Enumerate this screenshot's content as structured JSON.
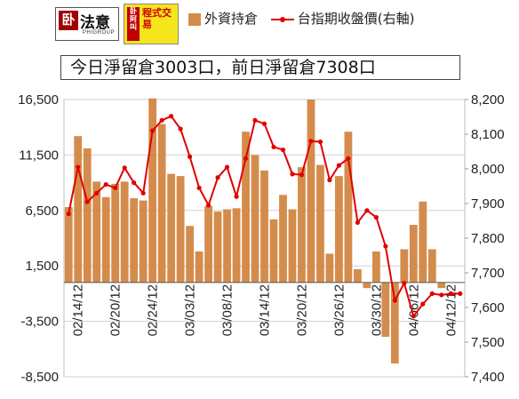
{
  "logo": {
    "mark": "卧",
    "name": "法意",
    "sub": "PHIGROUP",
    "program_mark": "卧阿叫",
    "program_text": "程式交易"
  },
  "legend": {
    "bar_label": "外資持倉",
    "line_label": "台指期收盤價(右軸)"
  },
  "note": "今日淨留倉3003口，前日淨留倉7308口",
  "colors": {
    "bar": "#D48C4C",
    "line": "#E00000",
    "grid": "#D0D0D0",
    "axis_text": "#222222"
  },
  "chart_data": {
    "type": "bar",
    "categories": [
      "02/13",
      "02/14",
      "02/15",
      "02/16",
      "02/17",
      "02/20",
      "02/21",
      "02/22",
      "02/23",
      "02/24",
      "02/27",
      "03/01",
      "03/02",
      "03/03",
      "03/05",
      "03/06",
      "03/07",
      "03/08",
      "03/09",
      "03/12",
      "03/13",
      "03/14",
      "03/15",
      "03/16",
      "03/19",
      "03/20",
      "03/21",
      "03/22",
      "03/23",
      "03/26",
      "03/27",
      "03/28",
      "03/29",
      "03/30",
      "04/02",
      "04/03",
      "04/05",
      "04/06",
      "04/09",
      "04/10",
      "04/11",
      "04/12",
      "04/13"
    ],
    "tick_labels": [
      "02/14/12",
      "02/20/12",
      "02/24/12",
      "03/03/12",
      "03/08/12",
      "03/14/12",
      "03/20/12",
      "03/26/12",
      "03/30/12",
      "04/06/12",
      "04/12/12"
    ],
    "tick_categories": [
      "02/14",
      "02/20",
      "02/24",
      "03/03",
      "03/08",
      "03/14",
      "03/20",
      "03/26",
      "03/30",
      "04/06",
      "04/12"
    ],
    "series": [
      {
        "name": "外資持倉",
        "type": "bar",
        "axis": "left",
        "values": [
          6800,
          13200,
          12100,
          9100,
          7700,
          8900,
          9100,
          7600,
          7400,
          16600,
          14300,
          9800,
          9600,
          5100,
          2800,
          6900,
          6400,
          6600,
          6700,
          13600,
          11500,
          10100,
          5700,
          7900,
          6600,
          10400,
          16500,
          10600,
          2600,
          9600,
          13600,
          1200,
          -500,
          2800,
          -4900,
          -7300,
          3000,
          5200,
          7300,
          3000,
          -500,
          0,
          0
        ]
      },
      {
        "name": "台指期收盤價(右軸)",
        "type": "line",
        "axis": "right",
        "values": [
          7870,
          8005,
          7905,
          7930,
          7955,
          7945,
          8003,
          7960,
          7930,
          8110,
          8140,
          8152,
          8115,
          8035,
          7945,
          7895,
          7975,
          8005,
          7920,
          8030,
          8140,
          8130,
          8063,
          8055,
          7985,
          7983,
          8080,
          8078,
          7968,
          8010,
          8030,
          7845,
          7880,
          7860,
          7777,
          7620,
          7670,
          7575,
          7610,
          7640,
          7636,
          7640,
          7640
        ]
      }
    ],
    "ylim_left": [
      -8500,
      16500
    ],
    "yticks_left": [
      -8500,
      -3500,
      1500,
      6500,
      11500,
      16500
    ],
    "ytick_labels_left": [
      "-8,500",
      "-3,500",
      "1,500",
      "6,500",
      "11,500",
      "16,500"
    ],
    "ylim_right": [
      7400,
      8200
    ],
    "yticks_right": [
      7400,
      7500,
      7600,
      7700,
      7800,
      7900,
      8000,
      8100,
      8200
    ],
    "ytick_labels_right": [
      "7,400",
      "7,500",
      "7,600",
      "7,700",
      "7,800",
      "7,900",
      "8,000",
      "8,100",
      "8,200"
    ],
    "grid": true,
    "legend_position": "top"
  }
}
